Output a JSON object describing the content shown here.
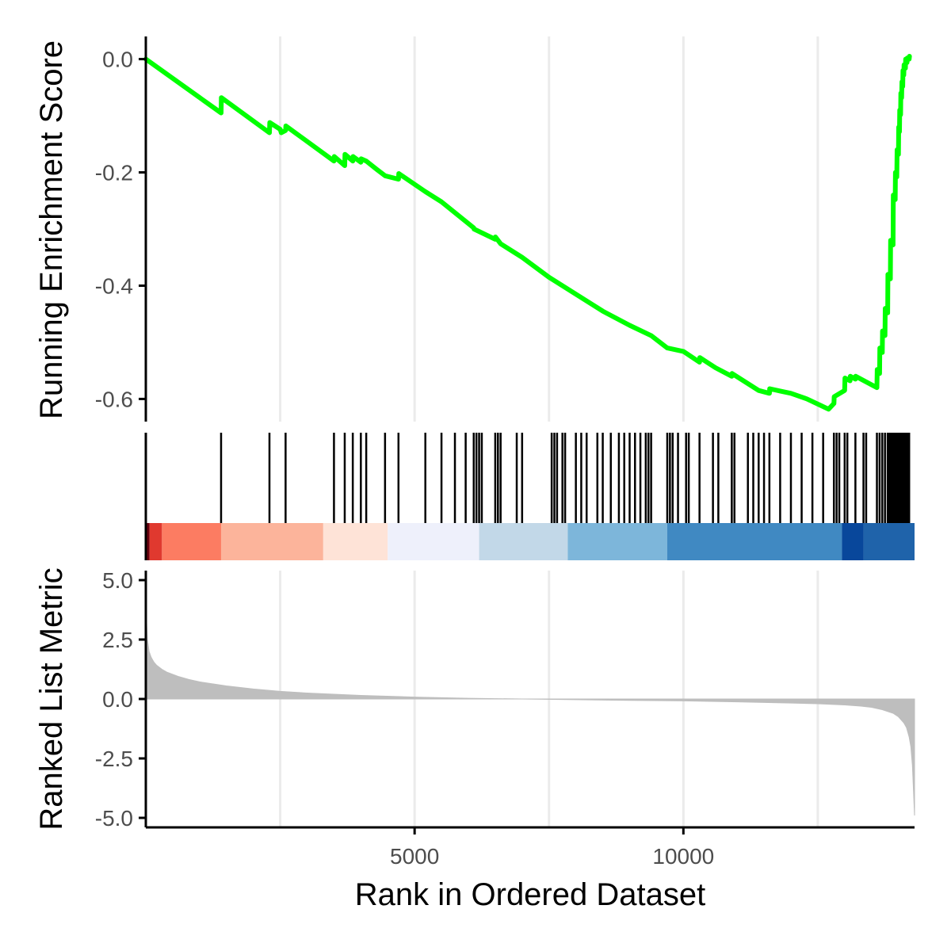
{
  "chart_data": {
    "type": "line",
    "xlabel": "Rank in Ordered Dataset",
    "xlim": [
      0,
      14300
    ],
    "x_ticks": [
      "5000",
      "10000"
    ],
    "x_tick_values": [
      5000,
      10000
    ],
    "x_grid_values": [
      2500,
      5000,
      7500,
      10000,
      12500
    ],
    "grid": "vertical major gridlines",
    "legend": "none",
    "colors": {
      "running_line": "#00ff00",
      "hit_line": "#000000",
      "metric_fill": "#bebebe",
      "axis": "#000000",
      "grid": "#ebebeb"
    },
    "enrichment_panel": {
      "ylabel": "Running Enrichment Score",
      "ylim": [
        -0.64,
        0.04
      ],
      "y_ticks": [
        "0.0",
        "-0.2",
        "-0.4",
        "-0.6"
      ],
      "y_tick_values": [
        0.0,
        -0.2,
        -0.4,
        -0.6
      ],
      "series": [
        {
          "x": [
            0,
            1400,
            1405,
            2300,
            2305,
            2500,
            2520,
            2600,
            2605,
            3500,
            3505,
            3700,
            3705,
            3850,
            3855,
            4000,
            4005,
            4100,
            4300,
            4450,
            4700,
            4705,
            5200,
            5500,
            6100,
            6105,
            6500,
            6505,
            6600,
            7000,
            7500,
            8500,
            9000,
            9400,
            9700,
            10000,
            10300,
            10305,
            10600,
            10900,
            10905,
            11400,
            11600,
            11605,
            11800,
            12000,
            12300,
            12700,
            12800,
            12805,
            13000,
            13005,
            13100,
            13105,
            13200,
            13205,
            13600,
            13605,
            13650,
            13655,
            13700,
            13705,
            13750,
            13755,
            13800,
            13805,
            13850,
            13855,
            13900,
            13905,
            13940,
            13945,
            13970,
            13975,
            14000,
            14005,
            14020,
            14025,
            14040,
            14045,
            14060,
            14065,
            14080,
            14085,
            14100,
            14105,
            14130,
            14135,
            14160,
            14165,
            14200,
            14205
          ],
          "y": [
            0.0,
            -0.095,
            -0.068,
            -0.13,
            -0.112,
            -0.124,
            -0.13,
            -0.126,
            -0.118,
            -0.18,
            -0.172,
            -0.188,
            -0.168,
            -0.18,
            -0.172,
            -0.182,
            -0.176,
            -0.18,
            -0.195,
            -0.206,
            -0.212,
            -0.202,
            -0.234,
            -0.252,
            -0.298,
            -0.3,
            -0.318,
            -0.314,
            -0.326,
            -0.35,
            -0.385,
            -0.445,
            -0.47,
            -0.488,
            -0.51,
            -0.516,
            -0.535,
            -0.527,
            -0.545,
            -0.56,
            -0.555,
            -0.585,
            -0.59,
            -0.582,
            -0.586,
            -0.59,
            -0.6,
            -0.618,
            -0.608,
            -0.596,
            -0.585,
            -0.563,
            -0.568,
            -0.56,
            -0.565,
            -0.56,
            -0.58,
            -0.548,
            -0.555,
            -0.51,
            -0.518,
            -0.48,
            -0.488,
            -0.44,
            -0.448,
            -0.38,
            -0.388,
            -0.32,
            -0.328,
            -0.24,
            -0.248,
            -0.2,
            -0.208,
            -0.16,
            -0.168,
            -0.12,
            -0.128,
            -0.09,
            -0.098,
            -0.06,
            -0.068,
            -0.04,
            -0.048,
            -0.02,
            -0.028,
            -0.01,
            -0.016,
            0.0,
            -0.006,
            0.002,
            0.0,
            0.005
          ]
        }
      ]
    },
    "hit_positions": [
      1400,
      2300,
      2600,
      3500,
      3700,
      3850,
      4000,
      4100,
      4450,
      4700,
      5200,
      5500,
      5750,
      5950,
      6100,
      6150,
      6200,
      6250,
      6500,
      6550,
      6600,
      6900,
      7000,
      7550,
      7600,
      7650,
      7750,
      7800,
      8000,
      8100,
      8200,
      8400,
      8500,
      8650,
      8800,
      8900,
      9000,
      9100,
      9200,
      9300,
      9350,
      9400,
      9700,
      9750,
      9800,
      9900,
      10050,
      10100,
      10300,
      10550,
      10650,
      10900,
      10950,
      11200,
      11300,
      11400,
      11500,
      11600,
      11800,
      12000,
      12200,
      12400,
      12600,
      12800,
      12850,
      12900,
      13000,
      13050,
      13200,
      13350,
      13400,
      13600,
      13650,
      13700,
      13750,
      13800,
      13820,
      13850,
      13880,
      13900,
      13930,
      13950,
      13980,
      14000,
      14020,
      14040,
      14060,
      14080,
      14100,
      14120,
      14140,
      14160,
      14180,
      14200
    ],
    "rank_color_bands": [
      {
        "from": 0,
        "to": 70,
        "color": "#67000d"
      },
      {
        "from": 70,
        "to": 300,
        "color": "#e0392f"
      },
      {
        "from": 300,
        "to": 1400,
        "color": "#fc7c62"
      },
      {
        "from": 1400,
        "to": 3300,
        "color": "#fcb49b"
      },
      {
        "from": 3300,
        "to": 4500,
        "color": "#fee3d7"
      },
      {
        "from": 4500,
        "to": 6200,
        "color": "#eef0fb"
      },
      {
        "from": 6200,
        "to": 7850,
        "color": "#c2d8e8"
      },
      {
        "from": 7850,
        "to": 9700,
        "color": "#7db6da"
      },
      {
        "from": 9700,
        "to": 12950,
        "color": "#4089c2"
      },
      {
        "from": 12950,
        "to": 13350,
        "color": "#08479b"
      },
      {
        "from": 13350,
        "to": 14300,
        "color": "#1f63aa"
      }
    ],
    "metric_panel": {
      "ylabel": "Ranked List Metric",
      "ylim": [
        -5.4,
        5.4
      ],
      "y_ticks": [
        "5.0",
        "2.5",
        "0.0",
        "-2.5",
        "-5.0"
      ],
      "y_tick_values": [
        5.0,
        2.5,
        0.0,
        -2.5,
        -5.0
      ],
      "series": [
        {
          "x": [
            0,
            5,
            15,
            30,
            60,
            100,
            150,
            200,
            300,
            400,
            600,
            800,
            1000,
            1500,
            2000,
            2500,
            3000,
            4000,
            5000,
            6000,
            7000,
            8000,
            9000,
            10000,
            11000,
            12000,
            12500,
            13000,
            13300,
            13500,
            13700,
            13900,
            14000,
            14100,
            14150,
            14200,
            14230,
            14260,
            14280,
            14300
          ],
          "y": [
            5.0,
            4.2,
            3.2,
            2.5,
            2.0,
            1.75,
            1.55,
            1.42,
            1.25,
            1.12,
            0.95,
            0.82,
            0.72,
            0.55,
            0.42,
            0.32,
            0.25,
            0.15,
            0.08,
            0.03,
            0.0,
            -0.03,
            -0.06,
            -0.08,
            -0.12,
            -0.17,
            -0.2,
            -0.25,
            -0.3,
            -0.35,
            -0.45,
            -0.6,
            -0.75,
            -1.0,
            -1.2,
            -1.6,
            -2.0,
            -2.8,
            -3.8,
            -4.9
          ]
        }
      ]
    }
  }
}
